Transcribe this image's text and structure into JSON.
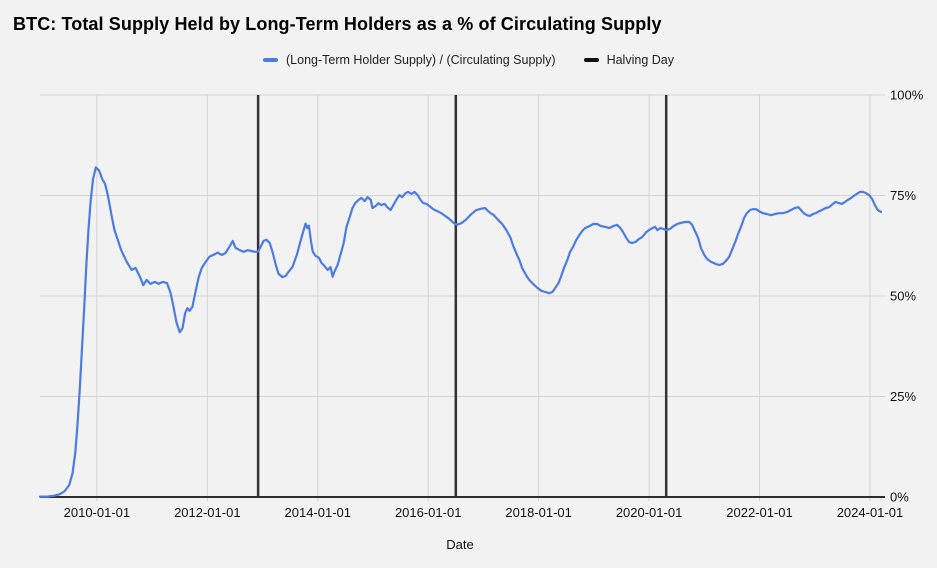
{
  "header": {
    "title": "BTC: Total Supply Held by Long-Term Holders as a % of Circulating Supply"
  },
  "legend": {
    "items": [
      {
        "label": "(Long-Term Holder Supply) / (Circulating Supply)",
        "color": "#4c7be2",
        "type": "line"
      },
      {
        "label": "Halving Day",
        "color": "#111111",
        "type": "line"
      }
    ]
  },
  "chart_data": {
    "type": "line",
    "title": "BTC: Total Supply Held by Long-Term Holders as a % of Circulating Supply",
    "xlabel": "Date",
    "ylabel": "",
    "grid": true,
    "legend_position": "top-center",
    "background": "#f2f2f2",
    "grid_color": "#d4d4d4",
    "axis_color": "#2e2e2e",
    "xlim": [
      2008.97,
      2024.2
    ],
    "ylim": [
      0,
      100
    ],
    "xticks": [
      {
        "label": "2010-01-01",
        "value": 2010
      },
      {
        "label": "2012-01-01",
        "value": 2012
      },
      {
        "label": "2014-01-01",
        "value": 2014
      },
      {
        "label": "2016-01-01",
        "value": 2016
      },
      {
        "label": "2018-01-01",
        "value": 2018
      },
      {
        "label": "2020-01-01",
        "value": 2020
      },
      {
        "label": "2022-01-01",
        "value": 2022
      },
      {
        "label": "2024-01-01",
        "value": 2024
      }
    ],
    "yticks": [
      {
        "label": "0%",
        "value": 0
      },
      {
        "label": "25%",
        "value": 25
      },
      {
        "label": "50%",
        "value": 50
      },
      {
        "label": "75%",
        "value": 75
      },
      {
        "label": "100%",
        "value": 100
      }
    ],
    "halving_lines": {
      "label": "Halving Day",
      "color": "#333333",
      "x_values": [
        2012.92,
        2016.5,
        2020.31
      ]
    },
    "series": [
      {
        "name": "(Long-Term Holder Supply) / (Circulating Supply)",
        "color": "#4c7be2",
        "points": [
          [
            2008.97,
            0.1
          ],
          [
            2009.1,
            0.1
          ],
          [
            2009.22,
            0.3
          ],
          [
            2009.33,
            0.7
          ],
          [
            2009.42,
            1.5
          ],
          [
            2009.5,
            3.0
          ],
          [
            2009.56,
            6.0
          ],
          [
            2009.61,
            11.0
          ],
          [
            2009.65,
            18.0
          ],
          [
            2009.69,
            27.0
          ],
          [
            2009.73,
            37.0
          ],
          [
            2009.77,
            47.0
          ],
          [
            2009.81,
            58.0
          ],
          [
            2009.85,
            67.0
          ],
          [
            2009.89,
            74.0
          ],
          [
            2009.93,
            79.0
          ],
          [
            2009.98,
            82.0
          ],
          [
            2010.04,
            81.2
          ],
          [
            2010.1,
            79.0
          ],
          [
            2010.15,
            77.8
          ],
          [
            2010.2,
            75.0
          ],
          [
            2010.27,
            69.7
          ],
          [
            2010.32,
            66.4
          ],
          [
            2010.38,
            63.9
          ],
          [
            2010.44,
            61.4
          ],
          [
            2010.54,
            58.5
          ],
          [
            2010.63,
            56.5
          ],
          [
            2010.7,
            57.0
          ],
          [
            2010.78,
            54.8
          ],
          [
            2010.84,
            52.7
          ],
          [
            2010.9,
            54.0
          ],
          [
            2010.97,
            53.0
          ],
          [
            2011.05,
            53.5
          ],
          [
            2011.12,
            53.0
          ],
          [
            2011.19,
            53.5
          ],
          [
            2011.27,
            53.2
          ],
          [
            2011.33,
            51.0
          ],
          [
            2011.38,
            47.8
          ],
          [
            2011.44,
            43.5
          ],
          [
            2011.5,
            41.0
          ],
          [
            2011.55,
            42.0
          ],
          [
            2011.6,
            45.8
          ],
          [
            2011.64,
            47.0
          ],
          [
            2011.68,
            46.3
          ],
          [
            2011.73,
            47.3
          ],
          [
            2011.78,
            50.7
          ],
          [
            2011.84,
            54.5
          ],
          [
            2011.9,
            57.0
          ],
          [
            2011.97,
            58.5
          ],
          [
            2012.04,
            59.8
          ],
          [
            2012.12,
            60.3
          ],
          [
            2012.19,
            60.8
          ],
          [
            2012.26,
            60.2
          ],
          [
            2012.33,
            60.7
          ],
          [
            2012.41,
            62.5
          ],
          [
            2012.46,
            63.7
          ],
          [
            2012.51,
            62.0
          ],
          [
            2012.59,
            61.4
          ],
          [
            2012.66,
            61.0
          ],
          [
            2012.73,
            61.4
          ],
          [
            2012.8,
            61.2
          ],
          [
            2012.86,
            61.0
          ],
          [
            2012.92,
            61.0
          ],
          [
            2012.97,
            62.4
          ],
          [
            2013.02,
            63.7
          ],
          [
            2013.07,
            64.0
          ],
          [
            2013.13,
            63.2
          ],
          [
            2013.18,
            61.0
          ],
          [
            2013.24,
            57.7
          ],
          [
            2013.29,
            55.5
          ],
          [
            2013.36,
            54.7
          ],
          [
            2013.42,
            55.0
          ],
          [
            2013.47,
            56.0
          ],
          [
            2013.54,
            57.2
          ],
          [
            2013.62,
            60.2
          ],
          [
            2013.67,
            62.7
          ],
          [
            2013.73,
            65.7
          ],
          [
            2013.78,
            68.0
          ],
          [
            2013.81,
            66.9
          ],
          [
            2013.84,
            67.5
          ],
          [
            2013.88,
            63.4
          ],
          [
            2013.91,
            61.0
          ],
          [
            2013.96,
            60.0
          ],
          [
            2014.02,
            59.5
          ],
          [
            2014.07,
            58.2
          ],
          [
            2014.12,
            57.5
          ],
          [
            2014.18,
            56.5
          ],
          [
            2014.23,
            57.2
          ],
          [
            2014.27,
            54.8
          ],
          [
            2014.3,
            56.0
          ],
          [
            2014.36,
            57.7
          ],
          [
            2014.41,
            60.2
          ],
          [
            2014.47,
            63.2
          ],
          [
            2014.52,
            67.2
          ],
          [
            2014.58,
            69.7
          ],
          [
            2014.63,
            71.9
          ],
          [
            2014.68,
            73.1
          ],
          [
            2014.74,
            73.9
          ],
          [
            2014.79,
            74.4
          ],
          [
            2014.85,
            73.6
          ],
          [
            2014.9,
            74.6
          ],
          [
            2014.96,
            73.9
          ],
          [
            2014.99,
            71.9
          ],
          [
            2015.05,
            72.4
          ],
          [
            2015.1,
            73.1
          ],
          [
            2015.15,
            72.6
          ],
          [
            2015.21,
            72.9
          ],
          [
            2015.26,
            72.1
          ],
          [
            2015.32,
            71.4
          ],
          [
            2015.37,
            72.6
          ],
          [
            2015.43,
            74.1
          ],
          [
            2015.48,
            75.1
          ],
          [
            2015.53,
            74.6
          ],
          [
            2015.59,
            75.6
          ],
          [
            2015.64,
            75.9
          ],
          [
            2015.7,
            75.4
          ],
          [
            2015.75,
            75.9
          ],
          [
            2015.81,
            75.1
          ],
          [
            2015.86,
            73.9
          ],
          [
            2015.91,
            73.1
          ],
          [
            2015.97,
            72.9
          ],
          [
            2016.02,
            72.4
          ],
          [
            2016.09,
            71.6
          ],
          [
            2016.17,
            71.1
          ],
          [
            2016.24,
            70.6
          ],
          [
            2016.31,
            69.9
          ],
          [
            2016.38,
            69.2
          ],
          [
            2016.45,
            68.3
          ],
          [
            2016.52,
            67.7
          ],
          [
            2016.6,
            68.1
          ],
          [
            2016.68,
            68.9
          ],
          [
            2016.76,
            70.1
          ],
          [
            2016.86,
            71.3
          ],
          [
            2016.95,
            71.7
          ],
          [
            2017.03,
            71.9
          ],
          [
            2017.08,
            71.2
          ],
          [
            2017.13,
            70.6
          ],
          [
            2017.18,
            70.2
          ],
          [
            2017.24,
            69.3
          ],
          [
            2017.29,
            68.6
          ],
          [
            2017.34,
            67.9
          ],
          [
            2017.41,
            66.5
          ],
          [
            2017.49,
            64.5
          ],
          [
            2017.54,
            62.5
          ],
          [
            2017.6,
            60.5
          ],
          [
            2017.65,
            59.0
          ],
          [
            2017.7,
            57.0
          ],
          [
            2017.78,
            55.0
          ],
          [
            2017.83,
            54.0
          ],
          [
            2017.9,
            53.0
          ],
          [
            2017.98,
            52.0
          ],
          [
            2018.05,
            51.3
          ],
          [
            2018.12,
            51.0
          ],
          [
            2018.19,
            50.7
          ],
          [
            2018.25,
            51.0
          ],
          [
            2018.3,
            52.0
          ],
          [
            2018.36,
            53.2
          ],
          [
            2018.41,
            55.0
          ],
          [
            2018.46,
            57.0
          ],
          [
            2018.52,
            59.0
          ],
          [
            2018.57,
            61.0
          ],
          [
            2018.63,
            62.4
          ],
          [
            2018.68,
            63.9
          ],
          [
            2018.74,
            65.2
          ],
          [
            2018.79,
            66.2
          ],
          [
            2018.84,
            66.9
          ],
          [
            2018.92,
            67.4
          ],
          [
            2018.99,
            67.9
          ],
          [
            2019.06,
            67.9
          ],
          [
            2019.13,
            67.4
          ],
          [
            2019.21,
            67.2
          ],
          [
            2019.28,
            66.9
          ],
          [
            2019.35,
            67.4
          ],
          [
            2019.42,
            67.7
          ],
          [
            2019.48,
            66.9
          ],
          [
            2019.53,
            65.9
          ],
          [
            2019.59,
            64.4
          ],
          [
            2019.64,
            63.4
          ],
          [
            2019.69,
            63.2
          ],
          [
            2019.75,
            63.4
          ],
          [
            2019.82,
            64.2
          ],
          [
            2019.88,
            64.7
          ],
          [
            2019.95,
            65.9
          ],
          [
            2020.0,
            66.4
          ],
          [
            2020.06,
            66.9
          ],
          [
            2020.11,
            67.2
          ],
          [
            2020.15,
            66.4
          ],
          [
            2020.2,
            66.9
          ],
          [
            2020.26,
            66.7
          ],
          [
            2020.31,
            66.4
          ],
          [
            2020.38,
            66.7
          ],
          [
            2020.44,
            67.4
          ],
          [
            2020.51,
            67.9
          ],
          [
            2020.58,
            68.2
          ],
          [
            2020.65,
            68.4
          ],
          [
            2020.73,
            68.4
          ],
          [
            2020.78,
            67.7
          ],
          [
            2020.83,
            66.2
          ],
          [
            2020.89,
            64.4
          ],
          [
            2020.94,
            61.9
          ],
          [
            2021.0,
            60.2
          ],
          [
            2021.05,
            59.2
          ],
          [
            2021.12,
            58.5
          ],
          [
            2021.2,
            58.0
          ],
          [
            2021.27,
            57.7
          ],
          [
            2021.34,
            58.0
          ],
          [
            2021.39,
            58.7
          ],
          [
            2021.45,
            59.7
          ],
          [
            2021.5,
            61.4
          ],
          [
            2021.56,
            63.4
          ],
          [
            2021.61,
            65.4
          ],
          [
            2021.67,
            67.4
          ],
          [
            2021.72,
            69.4
          ],
          [
            2021.77,
            70.6
          ],
          [
            2021.83,
            71.4
          ],
          [
            2021.88,
            71.6
          ],
          [
            2021.94,
            71.6
          ],
          [
            2021.99,
            71.1
          ],
          [
            2022.06,
            70.6
          ],
          [
            2022.13,
            70.4
          ],
          [
            2022.21,
            70.1
          ],
          [
            2022.28,
            70.4
          ],
          [
            2022.35,
            70.6
          ],
          [
            2022.42,
            70.6
          ],
          [
            2022.5,
            70.9
          ],
          [
            2022.57,
            71.4
          ],
          [
            2022.64,
            71.9
          ],
          [
            2022.7,
            72.1
          ],
          [
            2022.75,
            71.4
          ],
          [
            2022.8,
            70.6
          ],
          [
            2022.86,
            70.1
          ],
          [
            2022.91,
            69.9
          ],
          [
            2022.97,
            70.4
          ],
          [
            2023.02,
            70.6
          ],
          [
            2023.08,
            71.1
          ],
          [
            2023.13,
            71.4
          ],
          [
            2023.2,
            71.9
          ],
          [
            2023.26,
            72.1
          ],
          [
            2023.33,
            72.9
          ],
          [
            2023.38,
            73.4
          ],
          [
            2023.44,
            73.1
          ],
          [
            2023.49,
            72.9
          ],
          [
            2023.55,
            73.4
          ],
          [
            2023.6,
            73.9
          ],
          [
            2023.66,
            74.4
          ],
          [
            2023.71,
            74.9
          ],
          [
            2023.76,
            75.4
          ],
          [
            2023.82,
            75.9
          ],
          [
            2023.87,
            75.9
          ],
          [
            2023.93,
            75.6
          ],
          [
            2023.98,
            75.1
          ],
          [
            2024.04,
            74.1
          ],
          [
            2024.09,
            72.6
          ],
          [
            2024.14,
            71.4
          ],
          [
            2024.2,
            70.9
          ]
        ]
      }
    ]
  }
}
